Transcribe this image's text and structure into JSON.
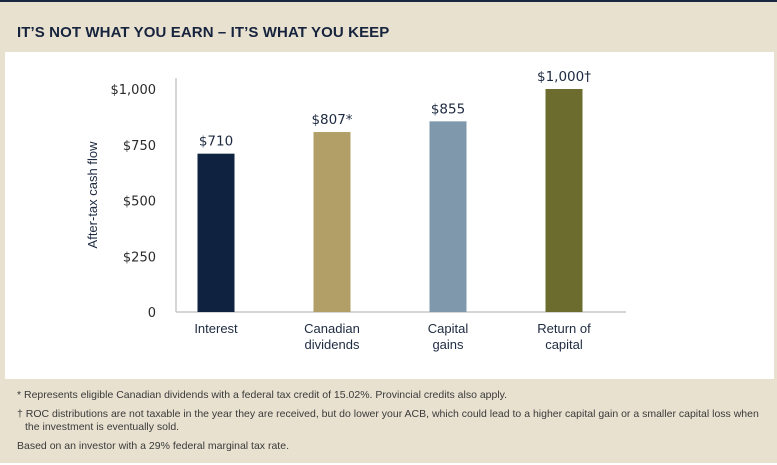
{
  "title": "IT’S NOT WHAT YOU EARN – IT’S WHAT YOU KEEP",
  "chart_data": {
    "type": "bar",
    "categories": [
      [
        "Interest"
      ],
      [
        "Canadian",
        "dividends"
      ],
      [
        "Capital",
        "gains"
      ],
      [
        "Return of",
        "capital"
      ]
    ],
    "values": [
      710,
      807,
      855,
      1000
    ],
    "data_labels": [
      "$710",
      "$807*",
      "$855",
      "$1,000†"
    ],
    "colors": [
      "#0f2340",
      "#b29e67",
      "#7f98ab",
      "#6b6c2e"
    ],
    "ylabel": "After-tax cash flow",
    "xlabel": "",
    "ylim": [
      0,
      1000
    ],
    "yticks": [
      0,
      250,
      500,
      750,
      1000
    ],
    "ytick_labels": [
      "0",
      "$250",
      "$500",
      "$750",
      "$1,000"
    ],
    "grid": false
  },
  "footnotes": [
    "* Represents eligible Canadian dividends with a federal tax credit of 15.02%. Provincial credits also apply.",
    "† ROC distributions are not taxable in the year they are received, but do lower your ACB, which could lead to a higher capital gain or a smaller capital loss when the investment is eventually sold.",
    "Based on an investor with a 29% federal marginal tax rate."
  ]
}
